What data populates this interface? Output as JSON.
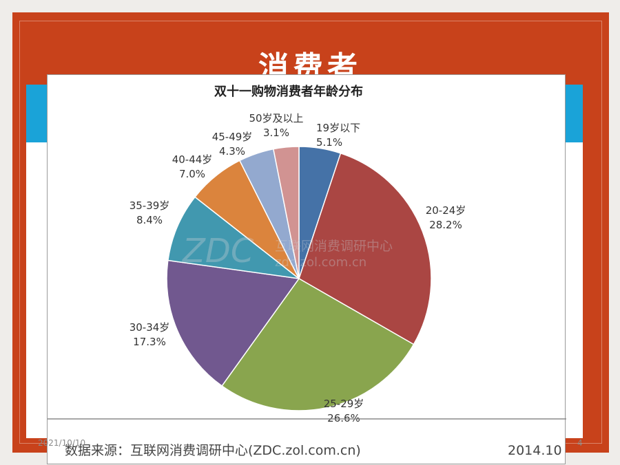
{
  "slide": {
    "title": "消费者",
    "footer_date": "2021/10/10",
    "page_number": "4"
  },
  "colors": {
    "slide_bg": "#c8421b",
    "band": "#1aa3d8"
  },
  "chart_data": {
    "type": "pie",
    "title": "双十一购物消费者年龄分布",
    "watermark": {
      "brand": "ZDC",
      "name": "互联网消费调研中心",
      "url": "zdc.zol.com.cn"
    },
    "source": "数据来源：互联网消费调研中心(ZDC.zol.com.cn)",
    "date": "2014.10",
    "start": "12 o'clock, clockwise",
    "slices": [
      {
        "label": "19岁以下",
        "value": 5.1,
        "pct": "5.1%",
        "color": "#4572a7"
      },
      {
        "label": "20-24岁",
        "value": 28.2,
        "pct": "28.2%",
        "color": "#aa4643"
      },
      {
        "label": "25-29岁",
        "value": 26.6,
        "pct": "26.6%",
        "color": "#89a54e"
      },
      {
        "label": "30-34岁",
        "value": 17.3,
        "pct": "17.3%",
        "color": "#71588f"
      },
      {
        "label": "35-39岁",
        "value": 8.4,
        "pct": "8.4%",
        "color": "#4198af"
      },
      {
        "label": "40-44岁",
        "value": 7.0,
        "pct": "7.0%",
        "color": "#db843d"
      },
      {
        "label": "45-49岁",
        "value": 4.3,
        "pct": "4.3%",
        "color": "#93a9cf"
      },
      {
        "label": "50岁及以上",
        "value": 3.1,
        "pct": "3.1%",
        "color": "#d19392"
      }
    ]
  }
}
